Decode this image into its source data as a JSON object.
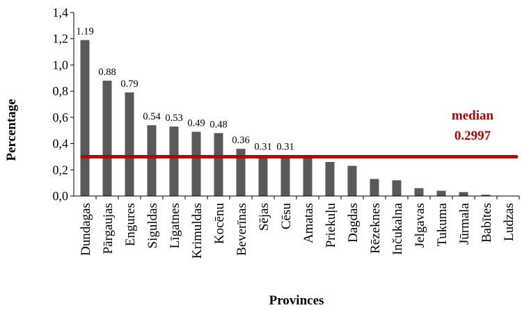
{
  "chart_data": {
    "type": "bar",
    "xlabel": "Provinces",
    "ylabel": "Percentage",
    "ylim": [
      0,
      1.4
    ],
    "yticks": [
      0,
      0.2,
      0.4,
      0.6,
      0.8,
      1.0,
      1.2,
      1.4
    ],
    "ytick_labels": [
      "0,0",
      "0,2",
      "0,4",
      "0,6",
      "0,8",
      "1,0",
      "1,2",
      "1,4"
    ],
    "grid": false,
    "bar_color": "#595959",
    "categories": [
      "Dundagas",
      "Pārgaujas",
      "Engures",
      "Siguldas",
      "Līgatnes",
      "Krimuldas",
      "Kocēnu",
      "Beverīnas",
      "Sējas",
      "Cēsu",
      "Amatas",
      "Priekuļu",
      "Dagdas",
      "Rēzeknes",
      "Inčukalna",
      "Jelgavas",
      "Tukuma",
      "Jūrmala",
      "Babītes",
      "Ludzas"
    ],
    "values": [
      1.19,
      0.88,
      0.79,
      0.54,
      0.53,
      0.49,
      0.48,
      0.36,
      0.31,
      0.31,
      0.3,
      0.26,
      0.23,
      0.13,
      0.12,
      0.06,
      0.04,
      0.03,
      0.01,
      0.0
    ],
    "data_labels": [
      "1.19",
      "0.88",
      "0.79",
      "0.54",
      "0.53",
      "0.49",
      "0.48",
      "0.36",
      "0.31",
      "0.31",
      "",
      "",
      "",
      "",
      "",
      "",
      "",
      "",
      "",
      ""
    ],
    "median": {
      "value": 0.2997,
      "label": "median",
      "value_label": "0.2997",
      "color": "#c00000"
    }
  }
}
